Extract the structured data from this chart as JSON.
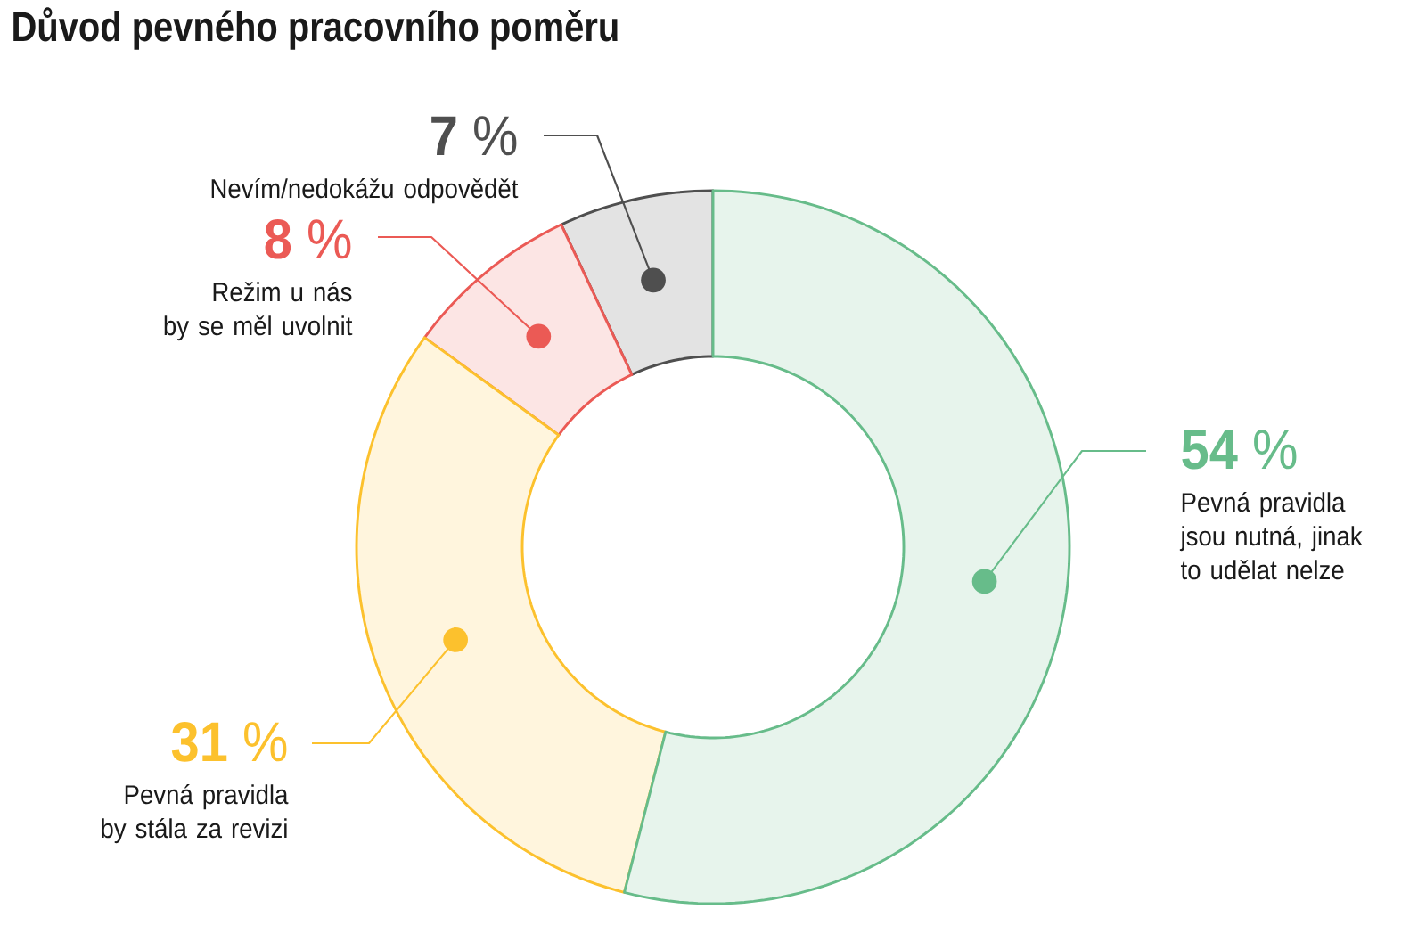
{
  "chart_data": {
    "type": "donut",
    "title": "Důvod pevného pracovního poměru",
    "categories": [
      "Pevná pravidla\njsou nutná, jinak\nto udělat nelze",
      "Pevná pravidla\nby stála za revizi",
      "Režim u nás\nby se měl uvolnit",
      "Nevím/nedokážu odpovědět"
    ],
    "values": [
      54,
      31,
      8,
      7
    ],
    "colors": [
      "#67bc8a",
      "#fcc12d",
      "#eb5a55",
      "#4f4f4f"
    ],
    "value_labels": [
      "**54** %",
      "**31** %",
      "**8** %",
      "**7** %"
    ]
  }
}
